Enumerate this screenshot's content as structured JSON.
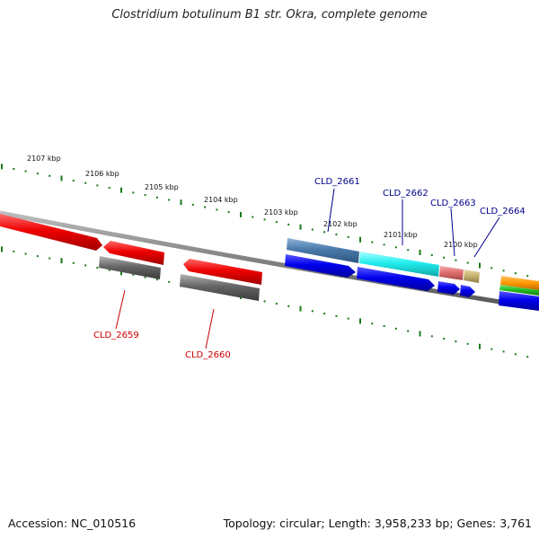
{
  "title": "Clostridium botulinum B1 str. Okra, complete genome",
  "footer": {
    "accession": "Accession: NC_010516",
    "summary": "Topology: circular; Length: 3,958,233 bp; Genes: 3,761"
  },
  "ruler_labels": [
    "2107 kbp",
    "2106 kbp",
    "2105 kbp",
    "2104 kbp",
    "2103 kbp",
    "2102 kbp",
    "2101 kbp",
    "2100 kbp"
  ],
  "gene_labels": [
    "CLD_2661",
    "CLD_2662",
    "CLD_2663",
    "CLD_2664",
    "CLD_2659",
    "CLD_2660"
  ],
  "colors": {
    "backbone": "#808080",
    "ruler_ticks": "#1a7a1a",
    "label_forward": "#00008b",
    "label_reverse": "#cc0000",
    "red_gene": "#ee0000",
    "gray_gene": "#666666",
    "blue_gene": "#0000ee",
    "steelblue_gene": "#4a7aaa",
    "cyan_gene": "#22eeee",
    "salmon_gene": "#e07070",
    "khaki_gene": "#c8b470",
    "orange_gene": "#ff9900",
    "green_gene": "#22bb22"
  }
}
